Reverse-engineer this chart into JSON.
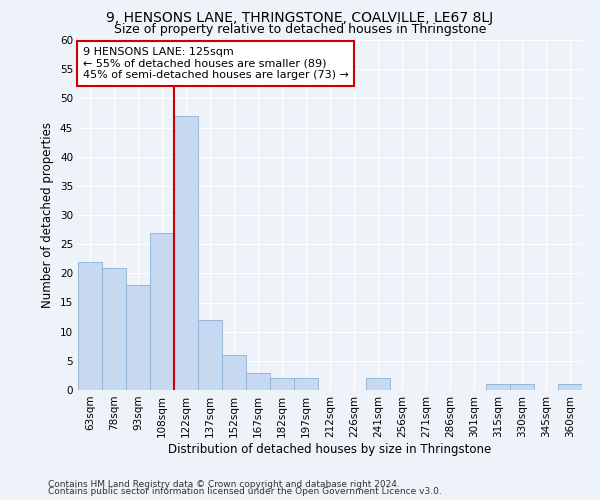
{
  "title": "9, HENSONS LANE, THRINGSTONE, COALVILLE, LE67 8LJ",
  "subtitle": "Size of property relative to detached houses in Thringstone",
  "xlabel": "Distribution of detached houses by size in Thringstone",
  "ylabel": "Number of detached properties",
  "categories": [
    "63sqm",
    "78sqm",
    "93sqm",
    "108sqm",
    "122sqm",
    "137sqm",
    "152sqm",
    "167sqm",
    "182sqm",
    "197sqm",
    "212sqm",
    "226sqm",
    "241sqm",
    "256sqm",
    "271sqm",
    "286sqm",
    "301sqm",
    "315sqm",
    "330sqm",
    "345sqm",
    "360sqm"
  ],
  "values": [
    22,
    21,
    18,
    27,
    47,
    12,
    6,
    3,
    2,
    2,
    0,
    0,
    2,
    0,
    0,
    0,
    0,
    1,
    1,
    0,
    1
  ],
  "bar_color": "#c6d9f0",
  "bar_edge_color": "#8ab0d4",
  "vline_index": 4,
  "vline_color": "#cc0000",
  "annotation_lines": [
    "9 HENSONS LANE: 125sqm",
    "← 55% of detached houses are smaller (89)",
    "45% of semi-detached houses are larger (73) →"
  ],
  "annotation_box_color": "#ffffff",
  "annotation_box_edgecolor": "#cc0000",
  "ylim": [
    0,
    60
  ],
  "yticks": [
    0,
    5,
    10,
    15,
    20,
    25,
    30,
    35,
    40,
    45,
    50,
    55,
    60
  ],
  "footer_line1": "Contains HM Land Registry data © Crown copyright and database right 2024.",
  "footer_line2": "Contains public sector information licensed under the Open Government Licence v3.0.",
  "background_color": "#eef2f9",
  "grid_color": "#ffffff",
  "title_fontsize": 10,
  "subtitle_fontsize": 9,
  "axis_label_fontsize": 8.5,
  "tick_fontsize": 7.5,
  "annotation_fontsize": 8,
  "footer_fontsize": 6.5
}
